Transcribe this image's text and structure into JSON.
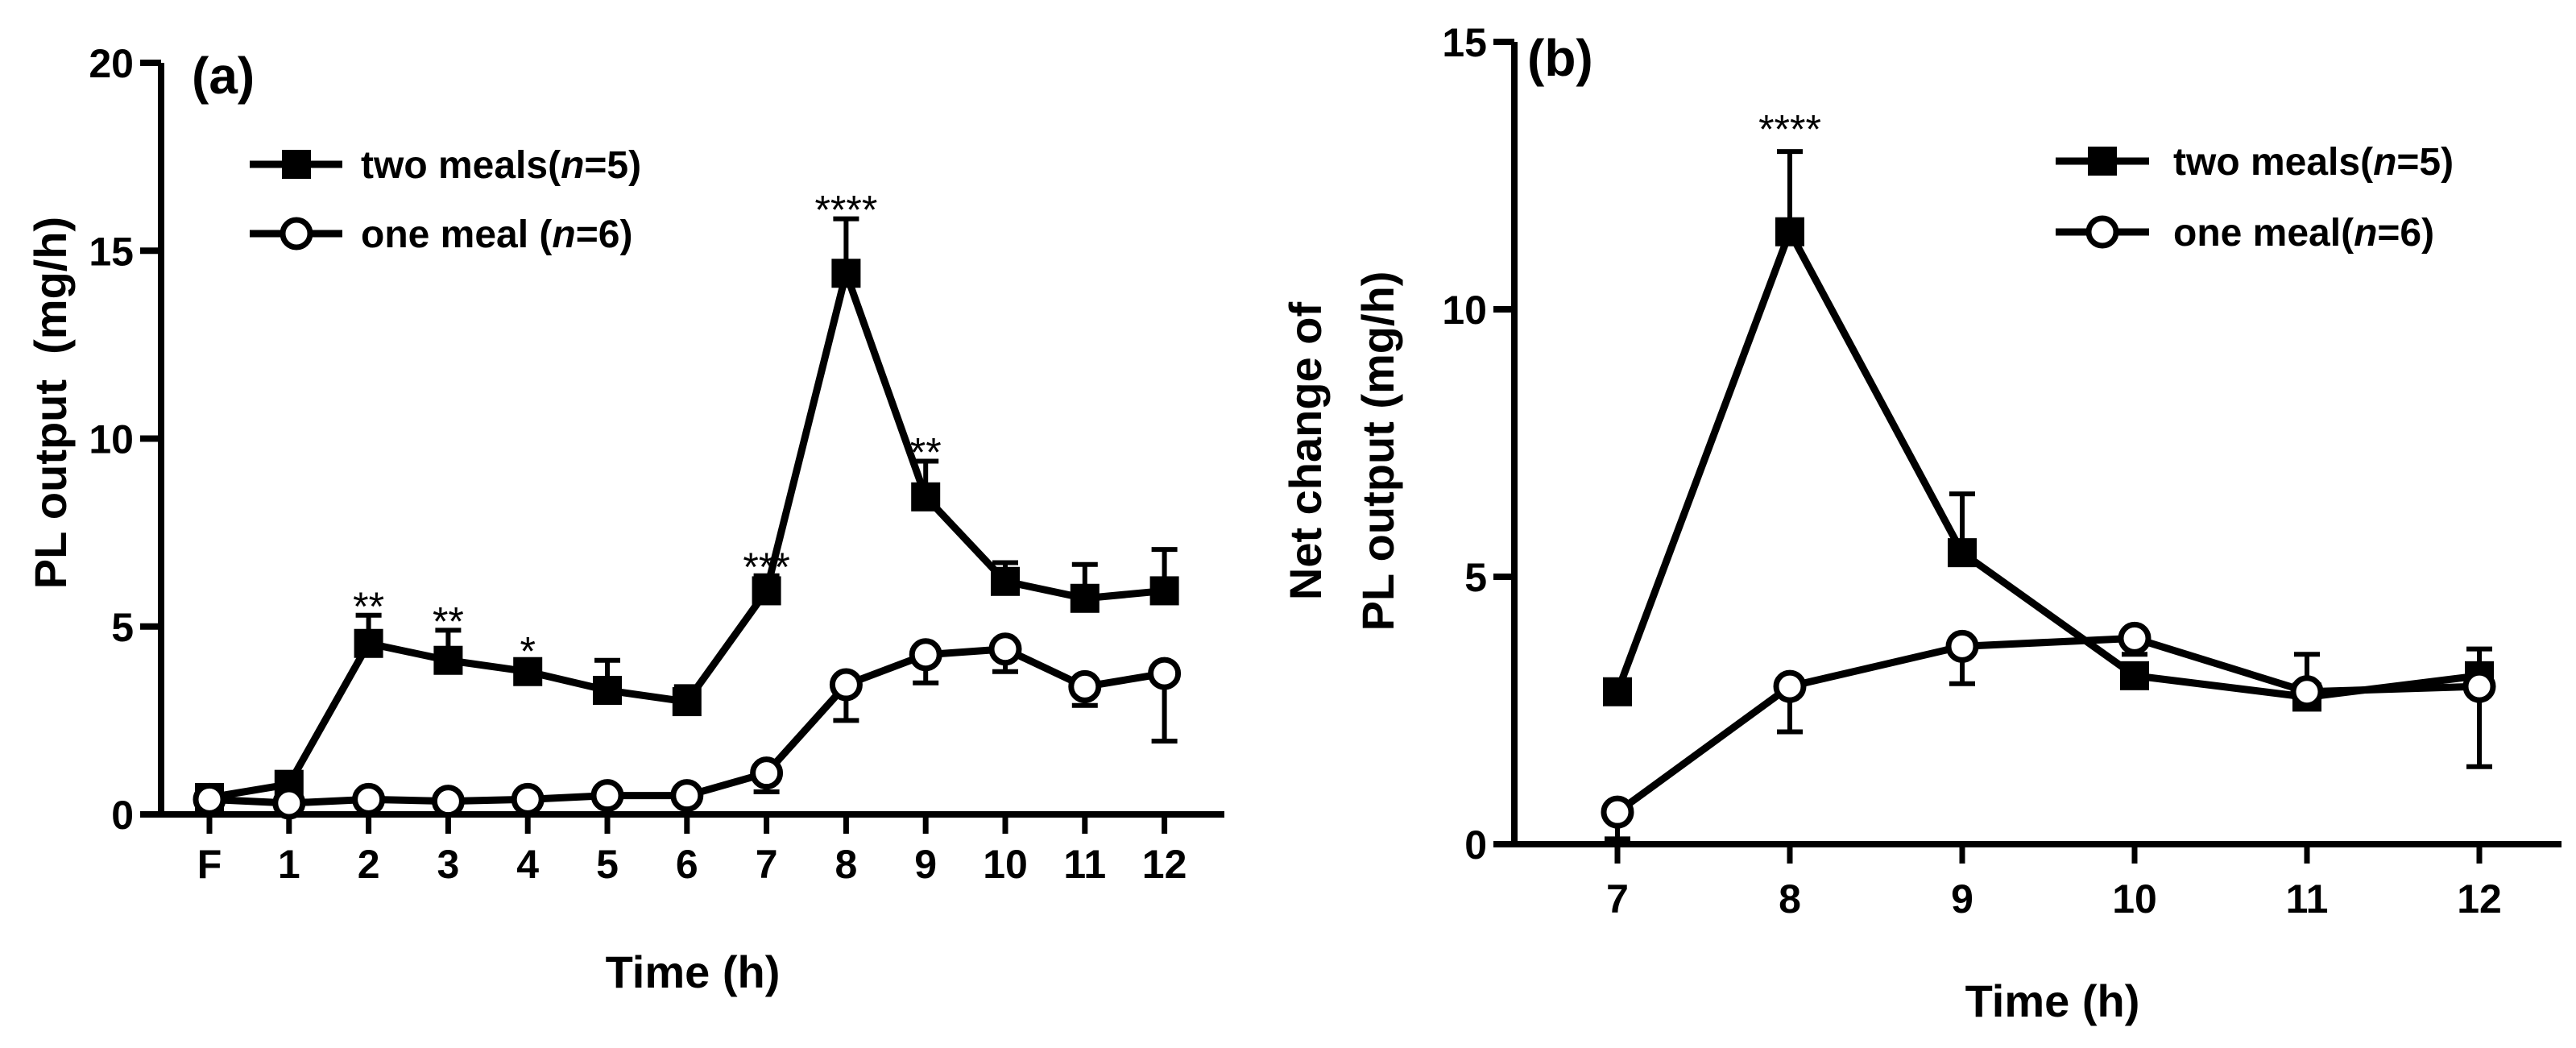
{
  "chart_data": [
    {
      "panel": "(a)",
      "type": "line",
      "title": "",
      "xlabel": "Time (h)",
      "ylabel": "PL output  (mg/h)",
      "categories": [
        "F",
        "1",
        "2",
        "3",
        "4",
        "5",
        "6",
        "7",
        "8",
        "9",
        "10",
        "11",
        "12"
      ],
      "ylim": [
        0,
        20
      ],
      "yticks": [
        0,
        5,
        10,
        15,
        20
      ],
      "grid": false,
      "legend_position": "top-left",
      "series": [
        {
          "name": "two meals(n=5)",
          "name_prefix": "two meals(",
          "name_n": "n",
          "name_suffix": "=5)",
          "marker": "filled-square",
          "values": [
            0.45,
            0.8,
            4.55,
            4.1,
            3.8,
            3.3,
            3.0,
            5.95,
            14.4,
            8.45,
            6.2,
            5.75,
            5.95
          ],
          "errors": [
            0.1,
            0.2,
            0.75,
            0.8,
            0.3,
            0.8,
            0.4,
            0.4,
            1.45,
            0.95,
            0.5,
            0.9,
            1.1
          ]
        },
        {
          "name": "one meal (n=6)",
          "name_prefix": "one meal (",
          "name_n": "n",
          "name_suffix": "=6)",
          "marker": "open-circle",
          "values": [
            0.4,
            0.3,
            0.4,
            0.35,
            0.4,
            0.5,
            0.5,
            1.1,
            3.45,
            4.25,
            4.4,
            3.4,
            3.75
          ],
          "errors": [
            0.1,
            0.1,
            0.1,
            0.1,
            0.1,
            0.1,
            0.1,
            0.5,
            0.95,
            0.75,
            0.6,
            0.5,
            1.8
          ],
          "error_dir": [
            1,
            1,
            1,
            1,
            1,
            1,
            1,
            -1,
            -1,
            -1,
            -1,
            -1,
            -1
          ]
        }
      ],
      "annotations": [
        {
          "x": "2",
          "y": 5.3,
          "text": "**"
        },
        {
          "x": "3",
          "y": 4.9,
          "text": "**"
        },
        {
          "x": "4",
          "y": 4.1,
          "text": "*"
        },
        {
          "x": "7",
          "y": 6.35,
          "text": "***"
        },
        {
          "x": "8",
          "y": 15.85,
          "text": "****"
        },
        {
          "x": "9",
          "y": 9.4,
          "text": "**"
        }
      ]
    },
    {
      "panel": "(b)",
      "type": "line",
      "title": "",
      "xlabel": "Time (h)",
      "ylabel": "Net change of",
      "ylabel_line2": "PL output (mg/h)",
      "categories": [
        "7",
        "8",
        "9",
        "10",
        "11",
        "12"
      ],
      "ylim": [
        0,
        15
      ],
      "yticks": [
        0,
        5,
        10,
        15
      ],
      "grid": false,
      "legend_position": "top-right",
      "series": [
        {
          "name": "two meals(n=5)",
          "name_prefix": "two meals(",
          "name_n": "n",
          "name_suffix": "=5)",
          "marker": "filled-square",
          "values": [
            2.85,
            11.45,
            5.45,
            3.15,
            2.75,
            3.15
          ],
          "errors": [
            0,
            1.5,
            1.1,
            0.15,
            0.8,
            0.5
          ]
        },
        {
          "name": "one meal(n=6)",
          "name_prefix": "one meal(",
          "name_n": "n",
          "name_suffix": "=6)",
          "marker": "open-circle",
          "values": [
            0.6,
            2.95,
            3.7,
            3.85,
            2.85,
            2.95
          ],
          "errors": [
            0.5,
            0.85,
            0.7,
            0.3,
            0.3,
            1.5
          ],
          "error_dir": [
            -1,
            -1,
            -1,
            -1,
            -1,
            -1
          ]
        }
      ],
      "annotations": [
        {
          "x": "8",
          "y": 13.2,
          "text": "****"
        }
      ]
    }
  ]
}
